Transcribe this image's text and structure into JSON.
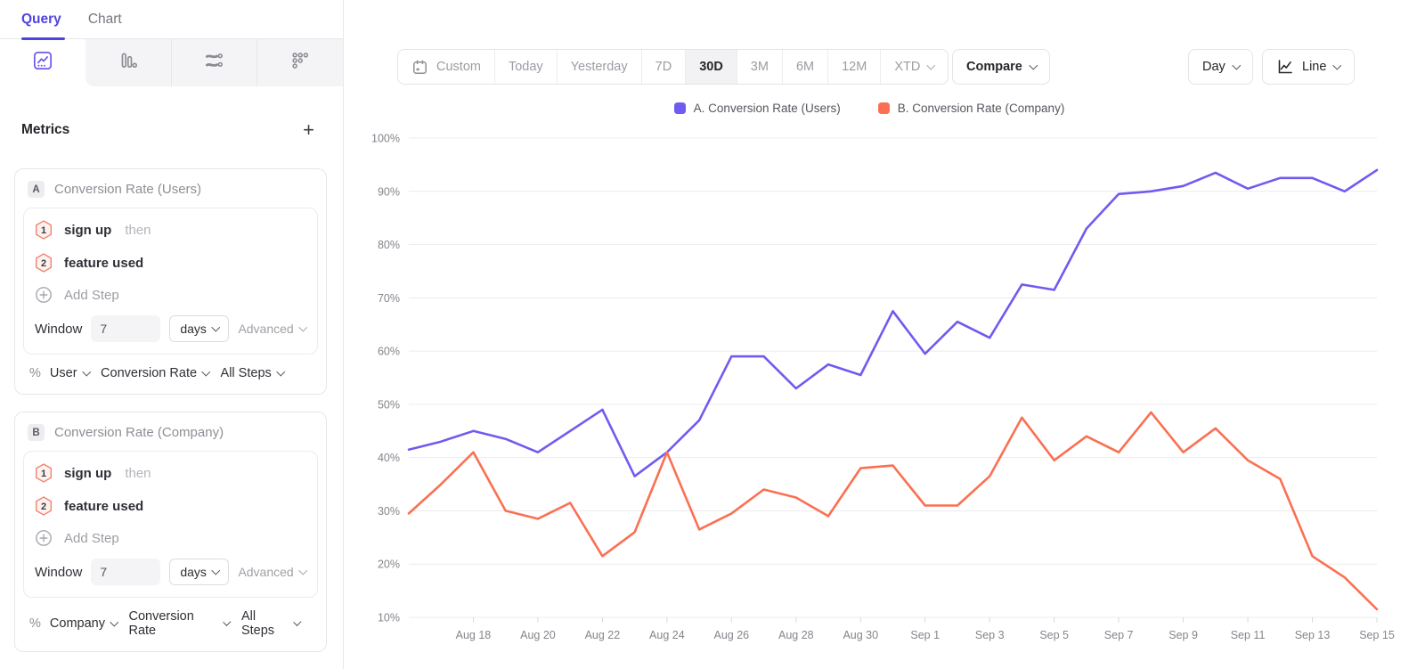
{
  "sidebar": {
    "tabs": [
      {
        "label": "Query"
      },
      {
        "label": "Chart"
      }
    ],
    "chart_type_tabs": [
      {
        "icon": "insights-line-chart",
        "selected": true
      },
      {
        "icon": "bar-chart",
        "selected": false
      },
      {
        "icon": "flows",
        "selected": false
      },
      {
        "icon": "retention-dots",
        "selected": false
      }
    ],
    "metrics_title": "Metrics",
    "add_metric_label": "+",
    "metrics": [
      {
        "id": "A",
        "title": "Conversion Rate (Users)",
        "steps": [
          {
            "num": "1",
            "event": "sign up",
            "connector": "then"
          },
          {
            "num": "2",
            "event": "feature used",
            "connector": ""
          }
        ],
        "add_step_label": "Add Step",
        "window_label": "Window",
        "window_value": "7",
        "window_unit": "days",
        "advanced_label": "Advanced",
        "measure": {
          "prefix": "%",
          "entity": "User",
          "metric": "Conversion Rate",
          "scope": "All Steps"
        }
      },
      {
        "id": "B",
        "title": "Conversion Rate (Company)",
        "steps": [
          {
            "num": "1",
            "event": "sign up",
            "connector": "then"
          },
          {
            "num": "2",
            "event": "feature used",
            "connector": ""
          }
        ],
        "add_step_label": "Add Step",
        "window_label": "Window",
        "window_value": "7",
        "window_unit": "days",
        "advanced_label": "Advanced",
        "measure": {
          "prefix": "%",
          "entity": "Company",
          "metric": "Conversion Rate",
          "scope": "All Steps"
        }
      }
    ]
  },
  "toolbar": {
    "date_ranges": [
      {
        "label": "Custom",
        "icon": "calendar",
        "selected": false
      },
      {
        "label": "Today",
        "selected": false
      },
      {
        "label": "Yesterday",
        "selected": false
      },
      {
        "label": "7D",
        "selected": false
      },
      {
        "label": "30D",
        "selected": true
      },
      {
        "label": "3M",
        "selected": false
      },
      {
        "label": "6M",
        "selected": false
      },
      {
        "label": "12M",
        "selected": false
      },
      {
        "label": "XTD",
        "selected": false,
        "caret": true
      }
    ],
    "compare_label": "Compare",
    "granularity_label": "Day",
    "chart_style_label": "Line"
  },
  "legend": [
    {
      "label": "A. Conversion Rate (Users)",
      "color": "#6F5BF0"
    },
    {
      "label": "B. Conversion Rate (Company)",
      "color": "#FB7052"
    }
  ],
  "chart_data": {
    "type": "line",
    "title": "",
    "xlabel": "",
    "ylabel": "",
    "ylim": [
      10,
      100
    ],
    "y_ticks_percent": [
      10,
      20,
      30,
      40,
      50,
      60,
      70,
      80,
      90,
      100
    ],
    "grid": "horizontal",
    "legend_position": "top",
    "x": [
      "Aug 16",
      "Aug 17",
      "Aug 18",
      "Aug 19",
      "Aug 20",
      "Aug 21",
      "Aug 22",
      "Aug 23",
      "Aug 24",
      "Aug 25",
      "Aug 26",
      "Aug 27",
      "Aug 28",
      "Aug 29",
      "Aug 30",
      "Aug 31",
      "Sep 1",
      "Sep 2",
      "Sep 3",
      "Sep 4",
      "Sep 5",
      "Sep 6",
      "Sep 7",
      "Sep 8",
      "Sep 9",
      "Sep 10",
      "Sep 11",
      "Sep 12",
      "Sep 13",
      "Sep 14",
      "Sep 15"
    ],
    "x_tick_labels": [
      "Aug 18",
      "Aug 20",
      "Aug 22",
      "Aug 24",
      "Aug 26",
      "Aug 28",
      "Aug 30",
      "Sep 1",
      "Sep 3",
      "Sep 5",
      "Sep 7",
      "Sep 9",
      "Sep 11",
      "Sep 13",
      "Sep 15"
    ],
    "series": [
      {
        "name": "A. Conversion Rate (Users)",
        "color": "#6F5BF0",
        "values": [
          41.5,
          43,
          45,
          43.5,
          41,
          45,
          49,
          36.5,
          41,
          47,
          59,
          59,
          53,
          57.5,
          55.5,
          67.5,
          59.5,
          65.5,
          62.5,
          72.5,
          71.5,
          83,
          89.5,
          90,
          91,
          93.5,
          90.5,
          92.5,
          92.5,
          90,
          94
        ]
      },
      {
        "name": "B. Conversion Rate (Company)",
        "color": "#FB7052",
        "values": [
          29.5,
          35,
          41,
          30,
          28.5,
          31.5,
          21.5,
          26,
          41,
          26.5,
          29.5,
          34,
          32.5,
          29,
          38,
          38.5,
          31,
          31,
          36.5,
          47.5,
          39.5,
          44,
          41,
          48.5,
          41,
          45.5,
          39.5,
          36,
          21.5,
          17.5,
          11.5
        ]
      }
    ]
  }
}
